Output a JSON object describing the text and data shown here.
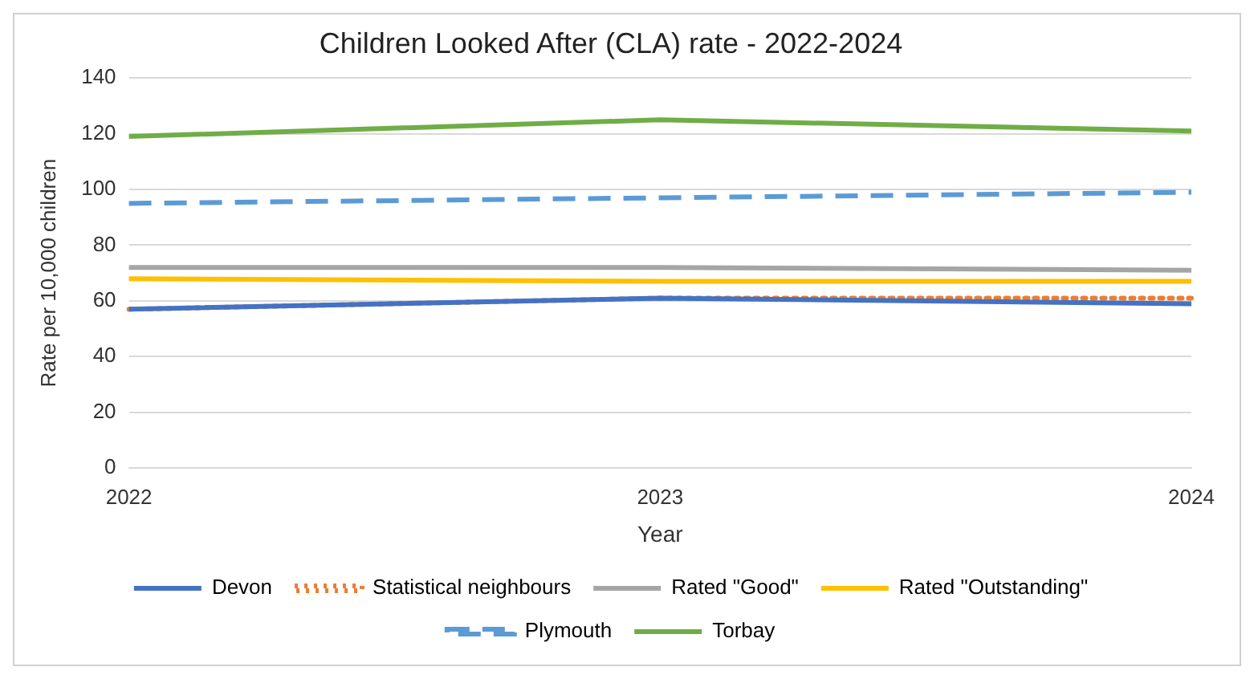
{
  "chart_data": {
    "type": "line",
    "title": "Children Looked After (CLA) rate - 2022-2024",
    "xlabel": "Year",
    "ylabel": "Rate per 10,000 children",
    "categories": [
      "2022",
      "2023",
      "2024"
    ],
    "series": [
      {
        "name": "Devon",
        "color": "#4472c4",
        "values": [
          57,
          61,
          59
        ]
      },
      {
        "name": "Statistical neighbours",
        "color": "#ed7d31",
        "values": [
          57,
          61,
          61
        ],
        "line_style": "dotted"
      },
      {
        "name": "Rated \"Good\"",
        "color": "#a5a5a5",
        "values": [
          72,
          72,
          71
        ]
      },
      {
        "name": "Rated \"Outstanding\"",
        "color": "#ffc000",
        "values": [
          68,
          67,
          67
        ]
      },
      {
        "name": "Plymouth",
        "color": "#5b9bd5",
        "values": [
          95,
          97,
          99
        ],
        "line_style": "dashed"
      },
      {
        "name": "Torbay",
        "color": "#70ad47",
        "values": [
          119,
          125,
          121
        ]
      }
    ],
    "ylim": [
      0,
      140
    ],
    "yticks": [
      0,
      20,
      40,
      60,
      80,
      100,
      120,
      140
    ],
    "grid": "y",
    "legend": "bottom",
    "marker": "none"
  }
}
